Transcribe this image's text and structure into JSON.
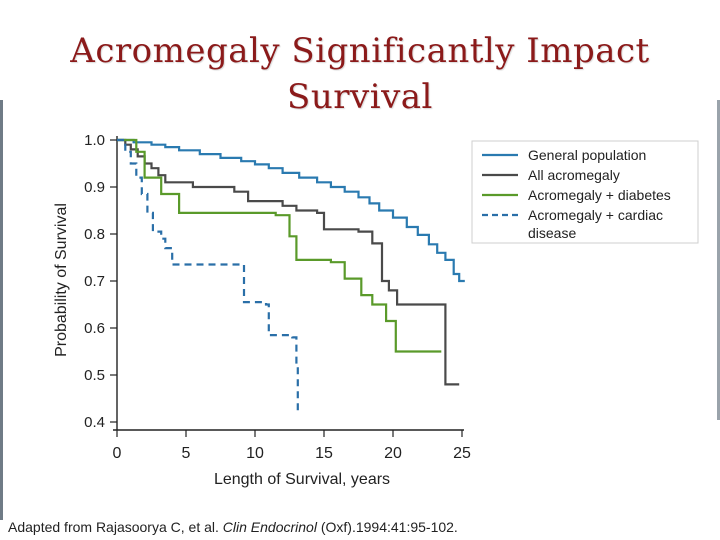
{
  "slide": {
    "title_line1": "Acromegaly Significantly Impact",
    "title_line2": "Survival",
    "title_color": "#8b1a1a",
    "citation_pre": "Adapted  from Rajasoorya C, et al. ",
    "citation_journal": "Clin Endocrinol",
    "citation_post": " (Oxf).1994:41:95-102."
  },
  "chart_data": {
    "type": "line",
    "title": "",
    "xlabel": "Length of Survival, years",
    "ylabel": "Probability of Survival",
    "xlim": [
      0,
      25
    ],
    "ylim": [
      0.4,
      1.0
    ],
    "xticks": [
      0,
      5,
      10,
      15,
      20,
      25
    ],
    "yticks": [
      0.4,
      0.5,
      0.6,
      0.7,
      0.8,
      0.9,
      1.0
    ],
    "ytick_labels": [
      "0.4",
      "0.5",
      "0.6",
      "0.7",
      "0.8",
      "0.9",
      "1.0"
    ],
    "xtick_labels": [
      "0",
      "5",
      "10",
      "15",
      "20",
      "25"
    ],
    "grid": false,
    "legend_position": "top-right",
    "step": true,
    "series": [
      {
        "name": "General population",
        "color": "#2a7ab0",
        "dash": "solid",
        "points": [
          [
            0,
            1.0
          ],
          [
            1.2,
            0.995
          ],
          [
            2.5,
            0.99
          ],
          [
            3.5,
            0.985
          ],
          [
            4.5,
            0.978
          ],
          [
            6,
            0.97
          ],
          [
            7.5,
            0.962
          ],
          [
            9,
            0.955
          ],
          [
            10,
            0.948
          ],
          [
            11,
            0.94
          ],
          [
            12,
            0.93
          ],
          [
            13.2,
            0.92
          ],
          [
            14.5,
            0.91
          ],
          [
            15.5,
            0.9
          ],
          [
            16.5,
            0.89
          ],
          [
            17.5,
            0.878
          ],
          [
            18.3,
            0.865
          ],
          [
            19,
            0.85
          ],
          [
            20,
            0.835
          ],
          [
            21,
            0.815
          ],
          [
            21.8,
            0.798
          ],
          [
            22.6,
            0.778
          ],
          [
            23.2,
            0.76
          ],
          [
            23.8,
            0.745
          ],
          [
            24.4,
            0.715
          ],
          [
            24.8,
            0.7
          ],
          [
            25.2,
            0.7
          ]
        ]
      },
      {
        "name": "All acromegaly",
        "color": "#4a4a4a",
        "dash": "solid",
        "points": [
          [
            0,
            1.0
          ],
          [
            0.6,
            0.99
          ],
          [
            1.0,
            0.98
          ],
          [
            1.5,
            0.965
          ],
          [
            2.0,
            0.95
          ],
          [
            2.5,
            0.94
          ],
          [
            3.0,
            0.925
          ],
          [
            3.5,
            0.91
          ],
          [
            5.5,
            0.9
          ],
          [
            8.5,
            0.89
          ],
          [
            9.5,
            0.87
          ],
          [
            12,
            0.86
          ],
          [
            13,
            0.85
          ],
          [
            14.5,
            0.845
          ],
          [
            15,
            0.81
          ],
          [
            17.5,
            0.805
          ],
          [
            18.5,
            0.78
          ],
          [
            19.2,
            0.7
          ],
          [
            19.7,
            0.68
          ],
          [
            20.3,
            0.65
          ],
          [
            23.3,
            0.65
          ],
          [
            23.8,
            0.48
          ],
          [
            24.8,
            0.48
          ]
        ]
      },
      {
        "name": "Acromegaly + diabetes",
        "color": "#5a9a2a",
        "dash": "solid",
        "points": [
          [
            0,
            1.0
          ],
          [
            1.4,
            0.975
          ],
          [
            2.0,
            0.92
          ],
          [
            3.2,
            0.885
          ],
          [
            4.5,
            0.845
          ],
          [
            11.5,
            0.84
          ],
          [
            12.5,
            0.795
          ],
          [
            13,
            0.745
          ],
          [
            15.5,
            0.74
          ],
          [
            16.5,
            0.705
          ],
          [
            17.7,
            0.67
          ],
          [
            18.5,
            0.65
          ],
          [
            19.5,
            0.615
          ],
          [
            20.2,
            0.55
          ],
          [
            23.5,
            0.55
          ]
        ]
      },
      {
        "name": "Acromegaly + cardiac disease",
        "color": "#2a6fa8",
        "dash": "dashed",
        "points": [
          [
            0,
            1.0
          ],
          [
            0.6,
            0.975
          ],
          [
            1.0,
            0.95
          ],
          [
            1.4,
            0.92
          ],
          [
            1.8,
            0.885
          ],
          [
            2.2,
            0.845
          ],
          [
            2.6,
            0.805
          ],
          [
            3.2,
            0.79
          ],
          [
            3.5,
            0.77
          ],
          [
            4.0,
            0.735
          ],
          [
            9.0,
            0.735
          ],
          [
            9.2,
            0.655
          ],
          [
            10.8,
            0.65
          ],
          [
            11,
            0.585
          ],
          [
            12.7,
            0.58
          ],
          [
            13.0,
            0.52
          ],
          [
            13.1,
            0.42
          ]
        ]
      }
    ],
    "legend_labels": [
      {
        "line1": "General population",
        "line2": ""
      },
      {
        "line1": "All acromegaly",
        "line2": ""
      },
      {
        "line1": "Acromegaly  + diabetes",
        "line2": ""
      },
      {
        "line1": "Acromegaly  + cardiac",
        "line2": "disease"
      }
    ]
  }
}
